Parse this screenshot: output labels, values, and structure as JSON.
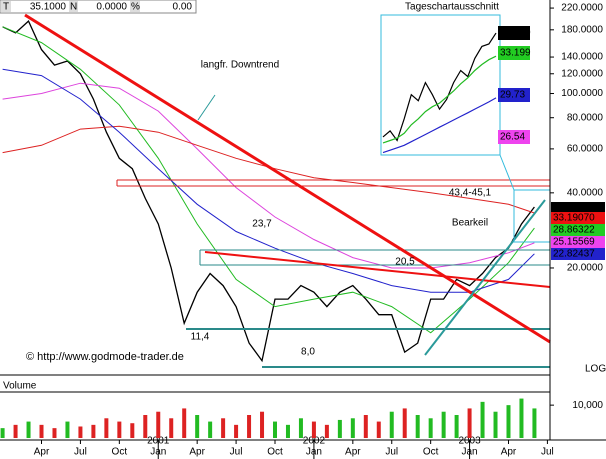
{
  "chart_data": {
    "type": "line",
    "header": {
      "symbol_flag": "T",
      "last": "35.1000",
      "change_flag": "N",
      "change": "0.0000",
      "pct_flag": "%",
      "pct": "0.00"
    },
    "log_scale": true,
    "ylim": [
      7.45,
      237
    ],
    "yticks": [
      {
        "value": 220,
        "label": "220.0000"
      },
      {
        "value": 180,
        "label": "180.0000"
      },
      {
        "value": 140,
        "label": "140.0000"
      },
      {
        "value": 120,
        "label": "120.0000"
      },
      {
        "value": 100,
        "label": "100.0000"
      },
      {
        "value": 80,
        "label": "80.0000"
      },
      {
        "value": 60,
        "label": "60.0000"
      },
      {
        "value": 40,
        "label": "40.0000"
      },
      {
        "value": 20,
        "label": "20.0000"
      }
    ],
    "scale_label": "LOG",
    "xlim": [
      -3.2,
      39.2
    ],
    "xticks": [
      {
        "value": 0,
        "label": "Apr"
      },
      {
        "value": 3,
        "label": "Jul"
      },
      {
        "value": 6,
        "label": "Oct"
      },
      {
        "value": 9,
        "label": "Jan"
      },
      {
        "value": 12,
        "label": "Apr"
      },
      {
        "value": 15,
        "label": "Jul"
      },
      {
        "value": 18,
        "label": "Oct"
      },
      {
        "value": 21,
        "label": "Jan"
      },
      {
        "value": 24,
        "label": "Apr"
      },
      {
        "value": 27,
        "label": "Jul"
      },
      {
        "value": 30,
        "label": "Oct"
      },
      {
        "value": 33,
        "label": "Jan"
      },
      {
        "value": 36,
        "label": "Apr"
      },
      {
        "value": 39,
        "label": "Jul"
      }
    ],
    "years": [
      {
        "value": 9,
        "label": "2001"
      },
      {
        "value": 21,
        "label": "2002"
      },
      {
        "value": 33,
        "label": "2003"
      }
    ],
    "series": [
      {
        "name": "price",
        "color": "#000000",
        "x": [
          -3,
          -2,
          -1,
          0,
          1,
          2,
          3,
          4,
          5,
          6,
          7,
          8,
          9,
          10,
          11,
          12,
          13,
          14,
          15,
          16,
          17,
          18,
          19,
          20,
          21,
          22,
          23,
          24,
          25,
          26,
          27,
          28,
          29,
          30,
          31,
          32,
          33,
          34,
          35,
          36,
          37,
          38
        ],
        "values": [
          185,
          175,
          195,
          150,
          130,
          135,
          120,
          95,
          70,
          55,
          50,
          38,
          30,
          20,
          12,
          16,
          19,
          17,
          14,
          10,
          8.5,
          15,
          15,
          17,
          16,
          14,
          16,
          17,
          15,
          13,
          13,
          9.2,
          10,
          15,
          15,
          18,
          17,
          19,
          22,
          24,
          30,
          35.1
        ]
      },
      {
        "name": "ma-green",
        "color": "#22bb22",
        "x": [
          -3,
          0,
          3,
          6,
          9,
          12,
          15,
          18,
          21,
          24,
          27,
          30,
          33,
          36,
          38
        ],
        "values": [
          185,
          160,
          125,
          90,
          55,
          30,
          18,
          14,
          15,
          16,
          14,
          11,
          15,
          21,
          28.9
        ]
      },
      {
        "name": "ma-magenta",
        "color": "#dd44dd",
        "x": [
          -3,
          0,
          3,
          6,
          9,
          12,
          15,
          18,
          21,
          24,
          27,
          30,
          33,
          36,
          38
        ],
        "values": [
          95,
          100,
          110,
          105,
          85,
          60,
          42,
          32,
          26,
          22,
          20,
          20,
          21,
          23,
          25.2
        ]
      },
      {
        "name": "ma-red",
        "color": "#dd2222",
        "x": [
          -3,
          0,
          3,
          6,
          9,
          12,
          15,
          18,
          21,
          24,
          27,
          30,
          33,
          36,
          38
        ],
        "values": [
          58,
          62,
          72,
          74,
          70,
          62,
          55,
          50,
          46,
          44,
          42,
          40,
          38,
          36,
          33.2
        ]
      },
      {
        "name": "ma-blue",
        "color": "#2222cc",
        "x": [
          -3,
          0,
          3,
          6,
          9,
          12,
          15,
          18,
          21,
          24,
          27,
          30,
          33,
          36,
          38
        ],
        "values": [
          125,
          118,
          95,
          70,
          50,
          36,
          28,
          24,
          21,
          19,
          17,
          16,
          16,
          18,
          22.8
        ]
      }
    ],
    "value_boxes": [
      {
        "text": "35.1000",
        "color": "#000000"
      },
      {
        "text": "33.19070",
        "color": "#ee1111"
      },
      {
        "text": "28.86322",
        "color": "#22cc22"
      },
      {
        "text": "25.15569",
        "color": "#ee44ee"
      },
      {
        "text": "22.82437",
        "color": "#2222cc"
      }
    ],
    "annotations": [
      "langfr. Downtrend",
      "23,7",
      "20,5",
      "11,4",
      "8,0",
      "43,4-45,1",
      "Bearkeil"
    ],
    "copyright": "© http://www.godmode-trader.de",
    "inset": {
      "title": "Tageschartausschnitt",
      "ylim": [
        25,
        36.6
      ],
      "series": [
        {
          "color": "#000000",
          "values": [
            26.5,
            27,
            26.2,
            28,
            30,
            29.5,
            31,
            30,
            28.8,
            29.6,
            31,
            32,
            31.5,
            33,
            34,
            34.2,
            35.1
          ]
        },
        {
          "color": "#22bb22",
          "values": [
            26,
            26.2,
            26.4,
            26.8,
            27.5,
            28,
            28.6,
            29,
            29.3,
            29.8,
            30.3,
            30.9,
            31.4,
            32,
            32.5,
            32.9,
            33.19
          ]
        },
        {
          "color": "#2222cc",
          "values": [
            25.2,
            25.4,
            25.6,
            25.8,
            26.1,
            26.4,
            26.7,
            27,
            27.3,
            27.6,
            27.9,
            28.2,
            28.5,
            28.8,
            29.1,
            29.4,
            29.73
          ]
        }
      ],
      "value_boxes": [
        {
          "text": "35.100",
          "color": "#000000"
        },
        {
          "text": "33.199",
          "color": "#22cc22"
        },
        {
          "text": "29.73",
          "color": "#2222cc"
        },
        {
          "text": "26.54",
          "color": "#ee44ee"
        }
      ]
    },
    "volume": {
      "label": "Volume",
      "ylim": [
        0,
        14000
      ],
      "yticks": [
        {
          "value": 10000,
          "label": "10,000"
        }
      ],
      "values": [
        3000,
        4000,
        5000,
        4000,
        3000,
        5000,
        3500,
        4000,
        6000,
        5000,
        4500,
        7000,
        8000,
        6000,
        9000,
        7000,
        5000,
        6000,
        4000,
        7000,
        8000,
        5000,
        4000,
        6000,
        5000,
        4000,
        5500,
        6000,
        7000,
        5000,
        8000,
        9000,
        7000,
        6000,
        8000,
        7000,
        9000,
        11000,
        8000,
        10000,
        12000,
        9000
      ]
    }
  }
}
